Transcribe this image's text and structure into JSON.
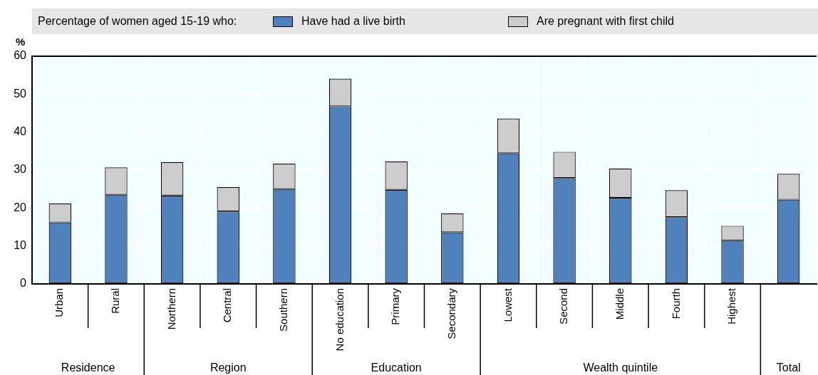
{
  "chart_data": {
    "type": "bar",
    "stacked": true,
    "categories": [
      "Urban",
      "Rural",
      "Northern",
      "Central",
      "Southern",
      "No education",
      "Primary",
      "Secondary",
      "Lowest",
      "Second",
      "Middle",
      "Fourth",
      "Highest",
      null
    ],
    "series": [
      {
        "name": "Have had a live birth",
        "color": "#4f81bd",
        "values": [
          16.2,
          23.5,
          23.3,
          19.1,
          25.0,
          46.8,
          24.8,
          13.6,
          34.4,
          27.9,
          22.7,
          17.6,
          11.5,
          22.2
        ]
      },
      {
        "name": "Are pregnant with first child",
        "color": "#cccccc",
        "values": [
          5.0,
          7.2,
          8.8,
          6.4,
          6.7,
          7.3,
          7.5,
          5.0,
          9.2,
          6.9,
          7.7,
          7.1,
          3.8,
          6.8
        ]
      }
    ],
    "legend_title": "Percentage of women aged 15-19 who:",
    "legend": "top",
    "ylabel": "%",
    "ylim": [
      0,
      60
    ],
    "yticks": [
      0,
      10,
      20,
      30,
      40,
      50,
      60
    ],
    "grid": true,
    "annotations": [
      "Residence",
      "Region",
      "Education",
      "Wealth quintile",
      "Total"
    ]
  }
}
